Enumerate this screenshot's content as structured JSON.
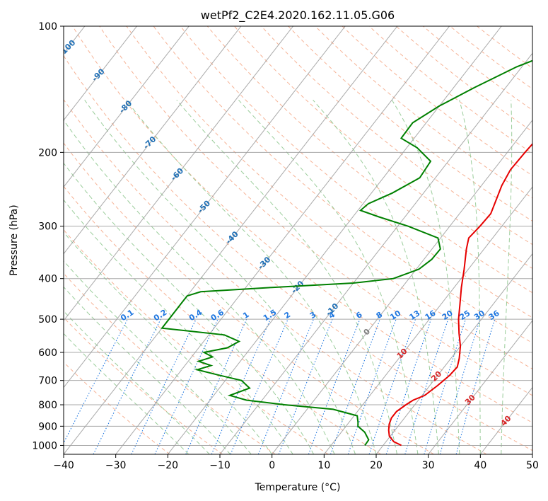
{
  "chart_data": {
    "type": "skew-t",
    "title": "wetPf2_C2E4.2020.162.11.05.G06",
    "xlabel": "Temperature (°C)",
    "ylabel": "Pressure (hPa)",
    "xlim": [
      -40,
      50
    ],
    "ylim": [
      1050,
      100
    ],
    "y_scale": "log",
    "x_ticks": [
      "−40",
      "−30",
      "−20",
      "−10",
      "0",
      "10",
      "20",
      "30",
      "40",
      "50"
    ],
    "y_ticks": [
      "100",
      "200",
      "300",
      "400",
      "500",
      "600",
      "700",
      "800",
      "900",
      "1000"
    ],
    "grid": true,
    "colors": {
      "temperature": "#e60000",
      "dewpoint": "#008000",
      "isotherm": "#a0a0a0",
      "dry_adiabat": "#f5a582",
      "moist_adiabat": "#90c890",
      "mixing_ratio": "#1f77e0",
      "isotherm_label_cold": "#1f6fb5",
      "isotherm_label_zero": "#808080",
      "isotherm_label_warm": "#d62728"
    },
    "temperature_profile": [
      {
        "p": 1000,
        "t": 23.5
      },
      {
        "p": 980,
        "t": 21.5
      },
      {
        "p": 950,
        "t": 19.8
      },
      {
        "p": 920,
        "t": 18.8
      },
      {
        "p": 890,
        "t": 18.0
      },
      {
        "p": 860,
        "t": 17.5
      },
      {
        "p": 830,
        "t": 17.5
      },
      {
        "p": 800,
        "t": 18.3
      },
      {
        "p": 780,
        "t": 19.0
      },
      {
        "p": 760,
        "t": 20.5
      },
      {
        "p": 720,
        "t": 21.5
      },
      {
        "p": 680,
        "t": 22.3
      },
      {
        "p": 650,
        "t": 22.5
      },
      {
        "p": 620,
        "t": 21.6
      },
      {
        "p": 580,
        "t": 20.0
      },
      {
        "p": 540,
        "t": 17.8
      },
      {
        "p": 500,
        "t": 15.6
      },
      {
        "p": 460,
        "t": 13.6
      },
      {
        "p": 420,
        "t": 11.4
      },
      {
        "p": 380,
        "t": 9.2
      },
      {
        "p": 340,
        "t": 6.6
      },
      {
        "p": 320,
        "t": 5.4
      },
      {
        "p": 300,
        "t": 5.8
      },
      {
        "p": 280,
        "t": 6.0
      },
      {
        "p": 260,
        "t": 5.0
      },
      {
        "p": 240,
        "t": 3.9
      },
      {
        "p": 220,
        "t": 3.2
      },
      {
        "p": 200,
        "t": 3.4
      },
      {
        "p": 180,
        "t": 3.8
      },
      {
        "p": 160,
        "t": 4.2
      },
      {
        "p": 140,
        "t": 4.8
      },
      {
        "p": 125,
        "t": 4.8
      },
      {
        "p": 110,
        "t": 5.0
      },
      {
        "p": 100,
        "t": 5.6
      }
    ],
    "dewpoint_profile": [
      {
        "p": 1000,
        "t": 16.5
      },
      {
        "p": 970,
        "t": 16.4
      },
      {
        "p": 930,
        "t": 14.5
      },
      {
        "p": 900,
        "t": 12.3
      },
      {
        "p": 880,
        "t": 11.7
      },
      {
        "p": 850,
        "t": 10.6
      },
      {
        "p": 820,
        "t": 5.0
      },
      {
        "p": 800,
        "t": -5.0
      },
      {
        "p": 780,
        "t": -13.0
      },
      {
        "p": 760,
        "t": -16.9
      },
      {
        "p": 730,
        "t": -14.2
      },
      {
        "p": 700,
        "t": -16.9
      },
      {
        "p": 680,
        "t": -22.0
      },
      {
        "p": 660,
        "t": -27.0
      },
      {
        "p": 645,
        "t": -25.0
      },
      {
        "p": 630,
        "t": -28.0
      },
      {
        "p": 615,
        "t": -26.0
      },
      {
        "p": 600,
        "t": -28.3
      },
      {
        "p": 585,
        "t": -24.5
      },
      {
        "p": 565,
        "t": -23.2
      },
      {
        "p": 545,
        "t": -27.0
      },
      {
        "p": 525,
        "t": -40.0
      },
      {
        "p": 440,
        "t": -40.0
      },
      {
        "p": 430,
        "t": -38.0
      },
      {
        "p": 420,
        "t": -25.0
      },
      {
        "p": 410,
        "t": -10.0
      },
      {
        "p": 400,
        "t": -3.0
      },
      {
        "p": 380,
        "t": 0.5
      },
      {
        "p": 360,
        "t": 1.5
      },
      {
        "p": 340,
        "t": 1.6
      },
      {
        "p": 320,
        "t": -0.5
      },
      {
        "p": 300,
        "t": -8.0
      },
      {
        "p": 285,
        "t": -15.0
      },
      {
        "p": 275,
        "t": -19.5
      },
      {
        "p": 265,
        "t": -19.0
      },
      {
        "p": 250,
        "t": -16.0
      },
      {
        "p": 230,
        "t": -13.0
      },
      {
        "p": 210,
        "t": -13.4
      },
      {
        "p": 195,
        "t": -18.0
      },
      {
        "p": 185,
        "t": -22.5
      },
      {
        "p": 170,
        "t": -22.6
      },
      {
        "p": 155,
        "t": -20.0
      },
      {
        "p": 140,
        "t": -16.0
      },
      {
        "p": 125,
        "t": -11.0
      },
      {
        "p": 110,
        "t": -3.0
      },
      {
        "p": 100,
        "t": 3.0
      }
    ],
    "isotherm_labels": [
      {
        "text": "-100",
        "t": -100,
        "p": 113
      },
      {
        "text": "-90",
        "t": -90,
        "p": 131
      },
      {
        "text": "-80",
        "t": -80,
        "p": 156
      },
      {
        "text": "-70",
        "t": -70,
        "p": 190
      },
      {
        "text": "-60",
        "t": -60,
        "p": 226
      },
      {
        "text": "-50",
        "t": -50,
        "p": 270
      },
      {
        "text": "-40",
        "t": -40,
        "p": 320
      },
      {
        "text": "-30",
        "t": -30,
        "p": 368
      },
      {
        "text": "-20",
        "t": -20,
        "p": 420
      },
      {
        "text": "-10",
        "t": -10,
        "p": 475
      },
      {
        "text": "0",
        "t": 0,
        "p": 537
      },
      {
        "text": "10",
        "t": 10,
        "p": 605
      },
      {
        "text": "20",
        "t": 20,
        "p": 685
      },
      {
        "text": "30",
        "t": 30,
        "p": 780
      },
      {
        "text": "40",
        "t": 40,
        "p": 875
      }
    ],
    "mixing_ratio_labels": [
      "0.1",
      "0.2",
      "0.4",
      "0.6",
      "1",
      "1.5",
      "2",
      "3",
      "4",
      "6",
      "8",
      "10",
      "13",
      "16",
      "20",
      "25",
      "30",
      "36"
    ],
    "mixing_ratio_values": [
      0.1,
      0.2,
      0.4,
      0.6,
      1,
      1.5,
      2,
      3,
      4,
      6,
      8,
      10,
      13,
      16,
      20,
      25,
      30,
      36
    ]
  }
}
